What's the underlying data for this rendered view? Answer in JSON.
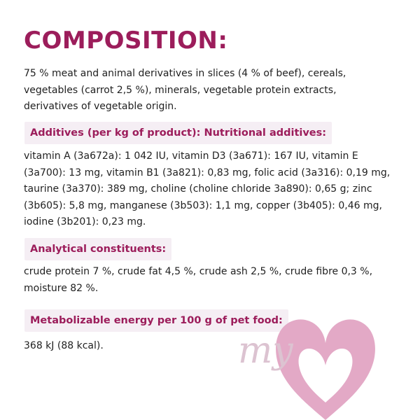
{
  "title": "COMPOSITION:",
  "composition_text": "75 % meat and animal derivatives in slices (4 % of beef), cereals, vegetables (carrot 2,5 %), minerals, vegetable protein extracts, derivatives of vegetable origin.",
  "sections": [
    {
      "heading": "Additives (per kg of product): Nutritional additives:",
      "body": "vitamin A (3a672a): 1 042 IU, vitamin D3 (3a671): 167 IU, vitamin E (3a700): 13 mg, vitamin B1 (3a821): 0,83 mg, folic acid (3a316): 0,19 mg, taurine (3a370): 389 mg, choline (choline chloride 3a890): 0,65 g; zinc (3b605): 5,8 mg, manganese (3b503): 1,1 mg, copper (3b405): 0,46 mg, iodine (3b201): 0,23 mg."
    },
    {
      "heading": "Analytical constituents:",
      "body": "crude protein 7 %, crude fat 4,5 %, crude ash 2,5 %, crude fibre 0,3 %, moisture 82 %."
    },
    {
      "heading": "Metabolizable energy per 100 g of pet food:",
      "body": "368 kJ (88 kcal)."
    }
  ],
  "logo": {
    "text": "my",
    "colors": {
      "heart": "#e3a9c6",
      "script": "#dcc3d1"
    }
  },
  "colors": {
    "accent": "#9c1d5b",
    "heading_background": "#f5eef4",
    "text": "#1f1f1f"
  }
}
